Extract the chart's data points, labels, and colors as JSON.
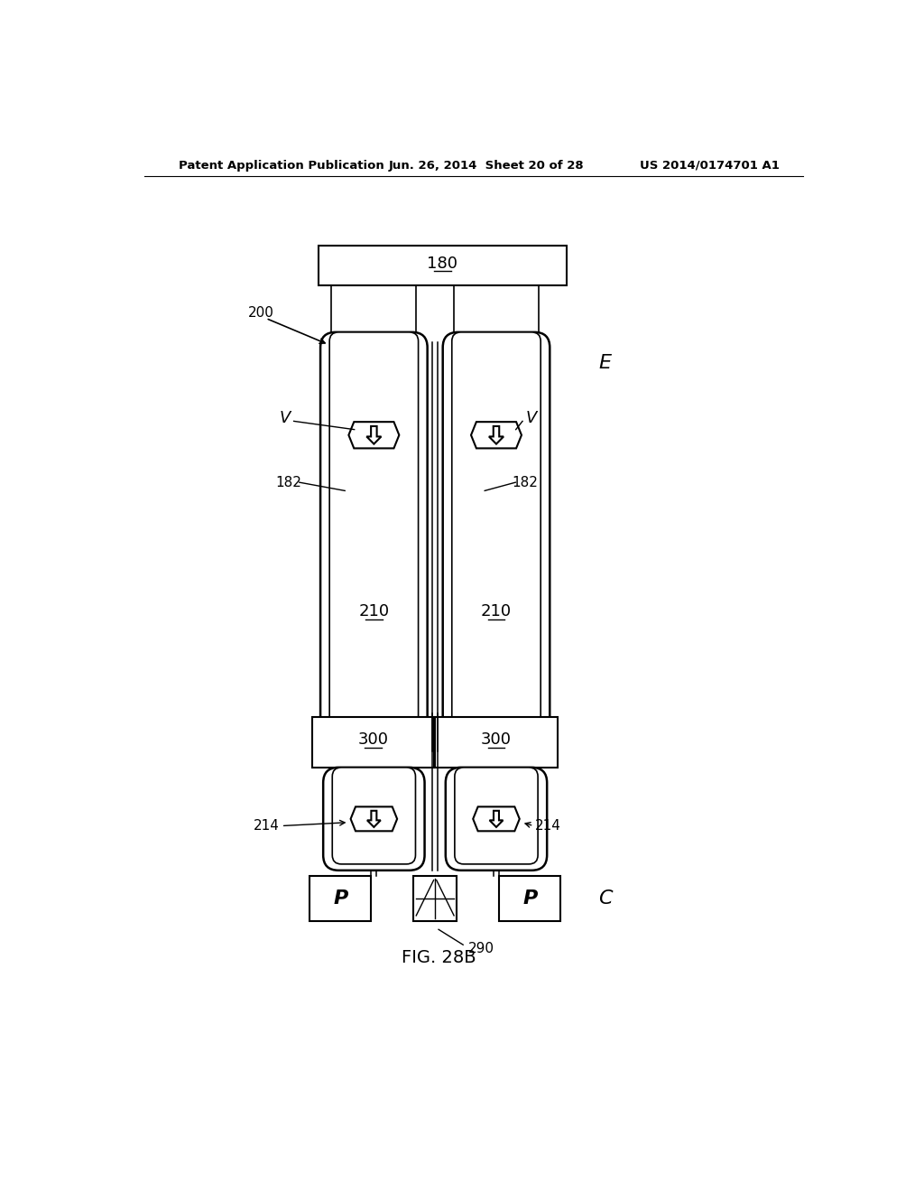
{
  "bg_color": "#ffffff",
  "line_color": "#000000",
  "header_text_left": "Patent Application Publication",
  "header_text_mid": "Jun. 26, 2014  Sheet 20 of 28",
  "header_text_right": "US 2014/0174701 A1",
  "fig_label": "FIG. 28B",
  "label_180": "180",
  "label_200": "200",
  "label_182_left": "182",
  "label_182_right": "182",
  "label_210_left": "210",
  "label_210_right": "210",
  "label_300_left": "300",
  "label_300_right": "300",
  "label_214_left": "214",
  "label_214_right": "214",
  "label_290": "290",
  "label_E": "E",
  "label_C": "C",
  "label_V_left": "V",
  "label_V_right": "V",
  "label_P_left": "P",
  "label_P_right": "P"
}
